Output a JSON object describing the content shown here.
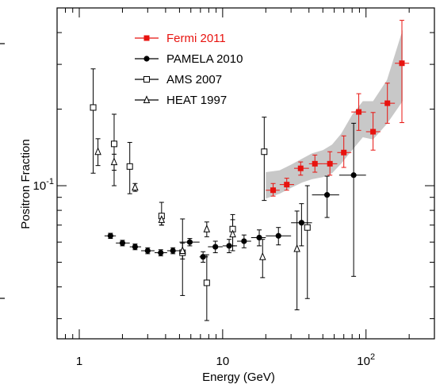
{
  "chart_data": {
    "type": "scatter",
    "xlabel": "Energy (GeV)",
    "ylabel": "Positron Fraction",
    "x_scale": "log",
    "y_scale": "log",
    "xlim": [
      0.7,
      300
    ],
    "ylim": [
      0.025,
      0.5
    ],
    "x_ticks": [
      {
        "value": 1,
        "label": "1"
      },
      {
        "value": 10,
        "label": "10"
      },
      {
        "value": 100,
        "label": "10^2"
      }
    ],
    "y_ticks": [
      {
        "value": 0.1,
        "label": "10^-1"
      }
    ],
    "grid": false,
    "legend_position": "top-left",
    "band": {
      "series": "Fermi 2011",
      "color": "#c8c8c8",
      "x": [
        20,
        25,
        30,
        36,
        42,
        50,
        58,
        67,
        80,
        95,
        112,
        140,
        180
      ],
      "y_low": [
        0.089,
        0.093,
        0.098,
        0.103,
        0.106,
        0.108,
        0.112,
        0.122,
        0.138,
        0.155,
        0.152,
        0.175,
        0.215
      ],
      "y_high": [
        0.113,
        0.115,
        0.121,
        0.128,
        0.134,
        0.138,
        0.145,
        0.16,
        0.19,
        0.215,
        0.215,
        0.26,
        0.41
      ]
    },
    "series": [
      {
        "name": "Fermi 2011",
        "color": "#e8130f",
        "marker": "filled-square",
        "points": [
          {
            "x": 22.5,
            "y": 0.096,
            "xlo": 20,
            "xhi": 25,
            "ylo": 0.091,
            "yhi": 0.102
          },
          {
            "x": 28,
            "y": 0.101,
            "xlo": 25,
            "xhi": 31.5,
            "ylo": 0.096,
            "yhi": 0.107
          },
          {
            "x": 35,
            "y": 0.117,
            "xlo": 31.5,
            "xhi": 40,
            "ylo": 0.11,
            "yhi": 0.124
          },
          {
            "x": 44,
            "y": 0.122,
            "xlo": 40,
            "xhi": 50,
            "ylo": 0.113,
            "yhi": 0.132
          },
          {
            "x": 56,
            "y": 0.122,
            "xlo": 50,
            "xhi": 63,
            "ylo": 0.11,
            "yhi": 0.136
          },
          {
            "x": 70,
            "y": 0.135,
            "xlo": 63,
            "xhi": 79,
            "ylo": 0.118,
            "yhi": 0.157
          },
          {
            "x": 89,
            "y": 0.195,
            "xlo": 79,
            "xhi": 100,
            "ylo": 0.165,
            "yhi": 0.23
          },
          {
            "x": 112,
            "y": 0.163,
            "xlo": 100,
            "xhi": 126,
            "ylo": 0.138,
            "yhi": 0.194
          },
          {
            "x": 141,
            "y": 0.211,
            "xlo": 126,
            "xhi": 159,
            "ylo": 0.176,
            "yhi": 0.253
          },
          {
            "x": 178,
            "y": 0.303,
            "xlo": 159,
            "xhi": 200,
            "ylo": 0.177,
            "yhi": 0.447
          }
        ]
      },
      {
        "name": "PAMELA 2010",
        "color": "#000000",
        "marker": "filled-circle",
        "points": [
          {
            "x": 1.65,
            "y": 0.0635,
            "xlo": 1.5,
            "xhi": 1.8,
            "ylo": 0.062,
            "yhi": 0.065
          },
          {
            "x": 2.0,
            "y": 0.0595,
            "xlo": 1.8,
            "xhi": 2.25,
            "ylo": 0.058,
            "yhi": 0.061
          },
          {
            "x": 2.45,
            "y": 0.0575,
            "xlo": 2.25,
            "xhi": 2.7,
            "ylo": 0.056,
            "yhi": 0.059
          },
          {
            "x": 3.0,
            "y": 0.0555,
            "xlo": 2.7,
            "xhi": 3.35,
            "ylo": 0.054,
            "yhi": 0.057
          },
          {
            "x": 3.7,
            "y": 0.0545,
            "xlo": 3.35,
            "xhi": 4.1,
            "ylo": 0.053,
            "yhi": 0.056
          },
          {
            "x": 4.5,
            "y": 0.0555,
            "xlo": 4.1,
            "xhi": 5.0,
            "ylo": 0.054,
            "yhi": 0.057
          },
          {
            "x": 5.9,
            "y": 0.06,
            "xlo": 5.0,
            "xhi": 6.9,
            "ylo": 0.058,
            "yhi": 0.062
          },
          {
            "x": 7.3,
            "y": 0.0525,
            "xlo": 6.9,
            "xhi": 7.9,
            "ylo": 0.05,
            "yhi": 0.055
          },
          {
            "x": 8.9,
            "y": 0.0575,
            "xlo": 7.9,
            "xhi": 10.0,
            "ylo": 0.0545,
            "yhi": 0.0605
          },
          {
            "x": 11.1,
            "y": 0.058,
            "xlo": 10.0,
            "xhi": 12.6,
            "ylo": 0.0545,
            "yhi": 0.0615
          },
          {
            "x": 14.1,
            "y": 0.0605,
            "xlo": 12.6,
            "xhi": 15.8,
            "ylo": 0.057,
            "yhi": 0.064
          },
          {
            "x": 18.0,
            "y": 0.0625,
            "xlo": 15.8,
            "xhi": 20.0,
            "ylo": 0.058,
            "yhi": 0.067
          },
          {
            "x": 24.5,
            "y": 0.0635,
            "xlo": 20.0,
            "xhi": 30.0,
            "ylo": 0.0585,
            "yhi": 0.0685
          },
          {
            "x": 35.5,
            "y": 0.0715,
            "xlo": 30.0,
            "xhi": 42.0,
            "ylo": 0.058,
            "yhi": 0.085
          },
          {
            "x": 53.5,
            "y": 0.092,
            "xlo": 42.0,
            "xhi": 65.0,
            "ylo": 0.075,
            "yhi": 0.109
          },
          {
            "x": 82.0,
            "y": 0.11,
            "xlo": 65.0,
            "xhi": 100.0,
            "ylo": 0.044,
            "yhi": 0.176
          }
        ]
      },
      {
        "name": "AMS 2007",
        "color": "#000000",
        "marker": "open-square",
        "points": [
          {
            "x": 1.25,
            "y": 0.203,
            "xlo": 1.25,
            "xhi": 1.25,
            "ylo": 0.112,
            "yhi": 0.288
          },
          {
            "x": 1.75,
            "y": 0.146,
            "xlo": 1.75,
            "xhi": 1.75,
            "ylo": 0.1,
            "yhi": 0.191
          },
          {
            "x": 2.25,
            "y": 0.119,
            "xlo": 2.25,
            "xhi": 2.25,
            "ylo": 0.093,
            "yhi": 0.148
          },
          {
            "x": 3.75,
            "y": 0.076,
            "xlo": 3.75,
            "xhi": 3.75,
            "ylo": 0.07,
            "yhi": 0.086
          },
          {
            "x": 5.25,
            "y": 0.0545,
            "xlo": 5.25,
            "xhi": 5.25,
            "ylo": 0.037,
            "yhi": 0.074
          },
          {
            "x": 7.75,
            "y": 0.0415,
            "xlo": 7.75,
            "xhi": 7.75,
            "ylo": 0.0295,
            "yhi": 0.0535
          },
          {
            "x": 11.75,
            "y": 0.0675,
            "xlo": 11.75,
            "xhi": 11.75,
            "ylo": 0.058,
            "yhi": 0.077
          },
          {
            "x": 19.5,
            "y": 0.136,
            "xlo": 19.5,
            "xhi": 19.5,
            "ylo": 0.0875,
            "yhi": 0.186
          },
          {
            "x": 39.0,
            "y": 0.0685,
            "xlo": 39.0,
            "xhi": 39.0,
            "ylo": 0.036,
            "yhi": 0.1
          }
        ]
      },
      {
        "name": "HEAT 1997",
        "color": "#000000",
        "marker": "open-triangle",
        "points": [
          {
            "x": 1.35,
            "y": 0.136,
            "xlo": 1.35,
            "xhi": 1.35,
            "ylo": 0.12,
            "yhi": 0.153
          },
          {
            "x": 1.75,
            "y": 0.124,
            "xlo": 1.75,
            "xhi": 1.75,
            "ylo": 0.115,
            "yhi": 0.133
          },
          {
            "x": 2.45,
            "y": 0.0985,
            "xlo": 2.45,
            "xhi": 2.45,
            "ylo": 0.095,
            "yhi": 0.102
          },
          {
            "x": 3.75,
            "y": 0.0735,
            "xlo": 3.75,
            "xhi": 3.75,
            "ylo": 0.07,
            "yhi": 0.077
          },
          {
            "x": 5.25,
            "y": 0.0555,
            "xlo": 5.25,
            "xhi": 5.25,
            "ylo": 0.0515,
            "yhi": 0.0595
          },
          {
            "x": 7.75,
            "y": 0.0675,
            "xlo": 7.75,
            "xhi": 7.75,
            "ylo": 0.063,
            "yhi": 0.072
          },
          {
            "x": 11.75,
            "y": 0.0645,
            "xlo": 11.75,
            "xhi": 11.75,
            "ylo": 0.0555,
            "yhi": 0.0735
          },
          {
            "x": 19.0,
            "y": 0.0525,
            "xlo": 19.0,
            "xhi": 19.0,
            "ylo": 0.0435,
            "yhi": 0.0615
          },
          {
            "x": 33.0,
            "y": 0.0565,
            "xlo": 33.0,
            "xhi": 33.0,
            "ylo": 0.0325,
            "yhi": 0.0795
          }
        ]
      }
    ]
  }
}
